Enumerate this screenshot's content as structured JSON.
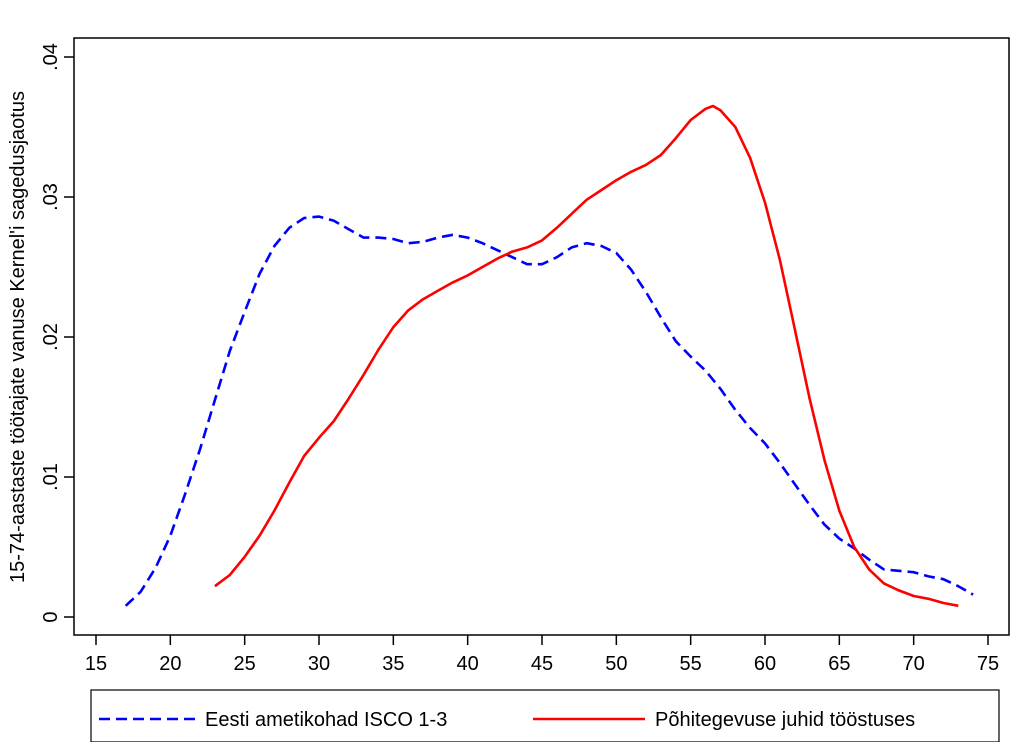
{
  "chart_data": {
    "type": "line",
    "title": "",
    "xlabel": "",
    "ylabel": "15-74-aastaste töötajate vanuse Kernel'i sagedusjaotus",
    "xlim": [
      15,
      75
    ],
    "ylim": [
      0,
      0.04
    ],
    "xticks": [
      15,
      20,
      25,
      30,
      35,
      40,
      45,
      50,
      55,
      60,
      65,
      70,
      75
    ],
    "xtick_labels": [
      "15",
      "20",
      "25",
      "30",
      "35",
      "40",
      "45",
      "50",
      "55",
      "60",
      "65",
      "70",
      "75"
    ],
    "yticks": [
      0,
      0.01,
      0.02,
      0.03,
      0.04
    ],
    "ytick_labels": [
      "0",
      ".01",
      ".02",
      ".03",
      ".04"
    ],
    "grid": false,
    "legend_position": "bottom",
    "series": [
      {
        "name": "Eesti ametikohad ISCO 1-3",
        "color": "#0000ff",
        "dash": "dashed",
        "x": [
          17,
          18,
          19,
          20,
          21,
          22,
          23,
          24,
          25,
          26,
          27,
          28,
          29,
          30,
          31,
          32,
          33,
          34,
          35,
          36,
          37,
          38,
          39,
          40,
          41,
          42,
          43,
          44,
          45,
          46,
          47,
          48,
          49,
          50,
          51,
          52,
          53,
          54,
          55,
          56,
          57,
          58,
          59,
          60,
          61,
          62,
          63,
          64,
          65,
          66,
          67,
          68,
          69,
          70,
          71,
          72,
          73,
          74
        ],
        "y": [
          0.0008,
          0.0018,
          0.0035,
          0.0058,
          0.0088,
          0.012,
          0.0155,
          0.019,
          0.0218,
          0.0245,
          0.0265,
          0.0278,
          0.0285,
          0.0286,
          0.0283,
          0.0277,
          0.0271,
          0.0271,
          0.027,
          0.0267,
          0.0268,
          0.0271,
          0.0273,
          0.0271,
          0.0267,
          0.0262,
          0.0257,
          0.0252,
          0.0252,
          0.0257,
          0.0264,
          0.0267,
          0.0265,
          0.026,
          0.0248,
          0.0232,
          0.0214,
          0.0197,
          0.0186,
          0.0176,
          0.0163,
          0.0148,
          0.0135,
          0.0124,
          0.011,
          0.0095,
          0.008,
          0.0066,
          0.0056,
          0.0049,
          0.0041,
          0.0034,
          0.0033,
          0.0032,
          0.0029,
          0.0027,
          0.0022,
          0.0016
        ]
      },
      {
        "name": "Põhitegevuse juhid tööstuses",
        "color": "#ff0000",
        "dash": "solid",
        "x": [
          23,
          24,
          25,
          26,
          27,
          28,
          29,
          30,
          31,
          32,
          33,
          34,
          35,
          36,
          37,
          38,
          39,
          40,
          41,
          42,
          43,
          44,
          45,
          46,
          47,
          48,
          49,
          50,
          51,
          52,
          53,
          54,
          55,
          56,
          56.5,
          57,
          58,
          59,
          60,
          61,
          62,
          63,
          64,
          65,
          66,
          67,
          68,
          69,
          70,
          71,
          72,
          73
        ],
        "y": [
          0.0022,
          0.003,
          0.0043,
          0.0058,
          0.0076,
          0.0096,
          0.0115,
          0.0128,
          0.014,
          0.0156,
          0.0173,
          0.0191,
          0.0207,
          0.0219,
          0.0227,
          0.0233,
          0.0239,
          0.0244,
          0.025,
          0.0256,
          0.0261,
          0.0264,
          0.0269,
          0.0278,
          0.0288,
          0.0298,
          0.0305,
          0.0312,
          0.0318,
          0.0323,
          0.033,
          0.0342,
          0.0355,
          0.0363,
          0.0365,
          0.0362,
          0.035,
          0.0328,
          0.0296,
          0.0255,
          0.0206,
          0.0156,
          0.0112,
          0.0076,
          0.005,
          0.0034,
          0.0024,
          0.0019,
          0.0015,
          0.0013,
          0.001,
          0.0008
        ]
      }
    ]
  }
}
